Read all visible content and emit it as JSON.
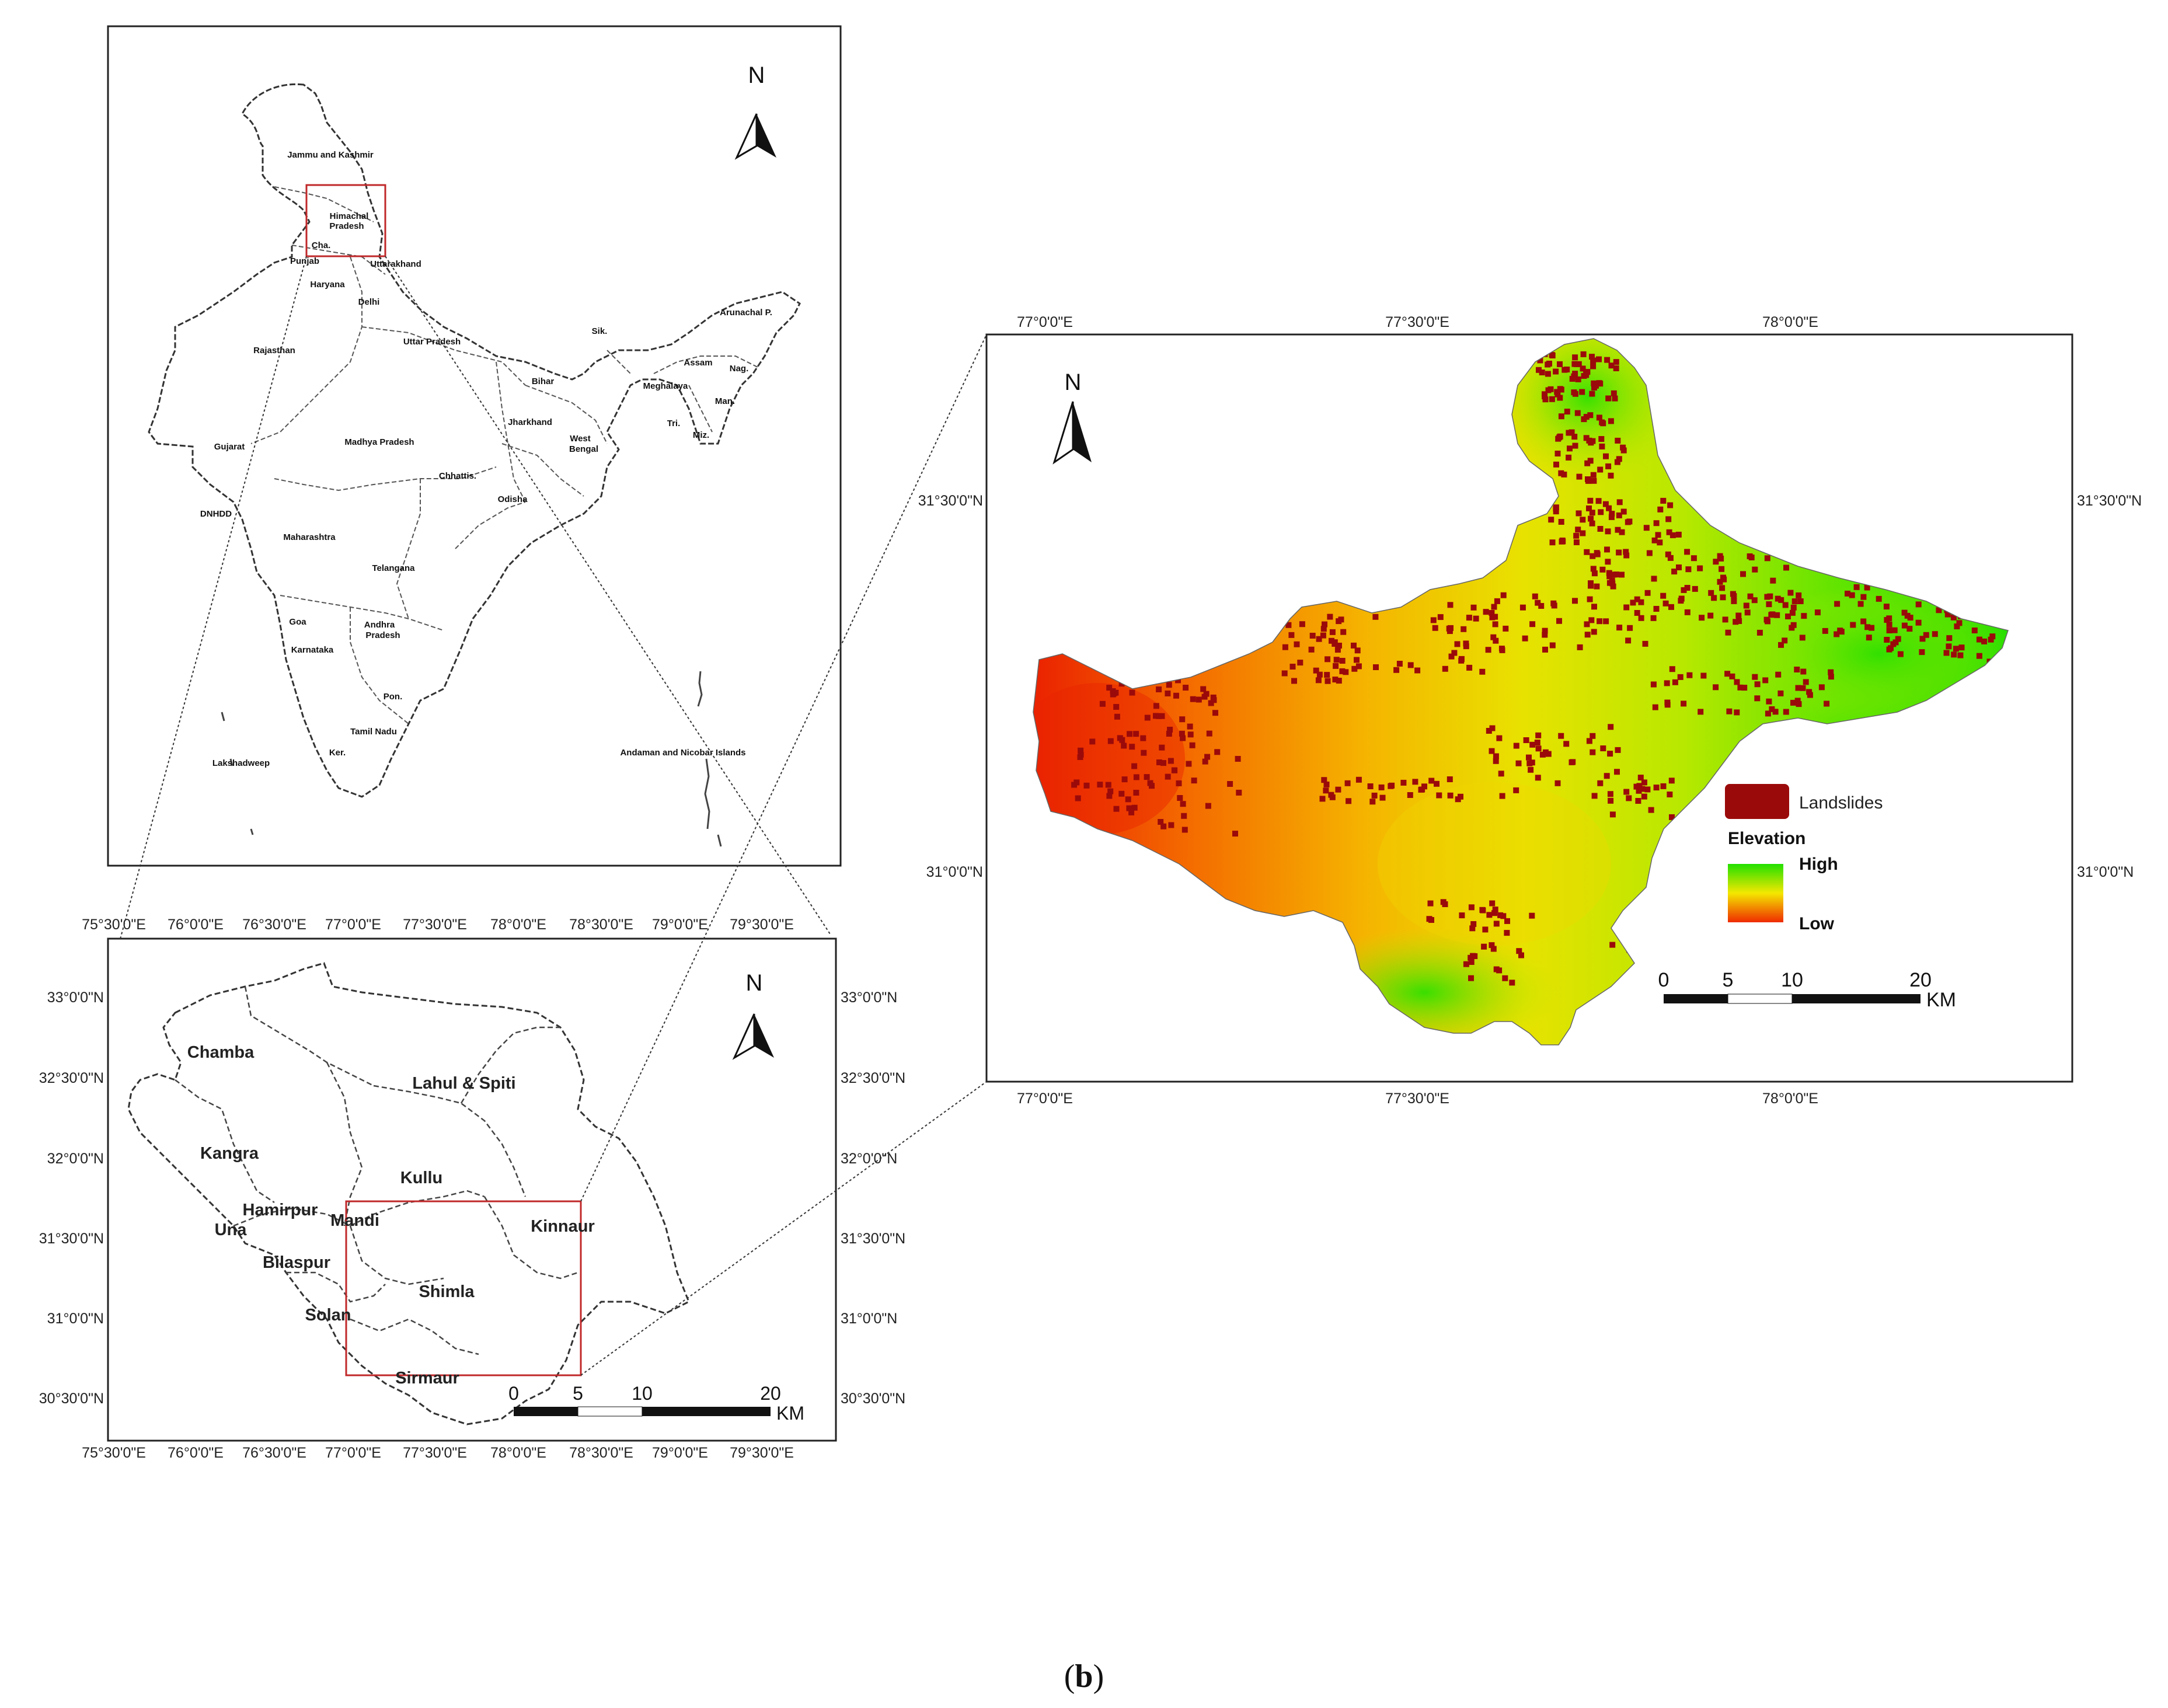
{
  "figure": {
    "caption_letter": "b"
  },
  "india_map": {
    "north": "N",
    "states": [
      "Jammu and Kashmir",
      "Himachal",
      "Pradesh",
      "Cha.",
      "Punjab",
      "Uttarakhand",
      "Haryana",
      "Delhi",
      "Uttar Pradesh",
      "Rajasthan",
      "Bihar",
      "Sik.",
      "Arunachal P.",
      "Assam",
      "Nag.",
      "Meghalaya",
      "Man.",
      "Tri.",
      "Miz.",
      "Jharkhand",
      "West",
      "Bengal",
      "Gujarat",
      "Madhya Pradesh",
      "Chhattis.",
      "Odisha",
      "DNHDD",
      "Maharashtra",
      "Telangana",
      "Goa",
      "Andhra",
      "Pradesh",
      "Karnataka",
      "Pon.",
      "Tamil Nadu",
      "Ker.",
      "Lakshadweep",
      "Andaman and Nicobar Islands"
    ]
  },
  "hp_map": {
    "north": "N",
    "districts": [
      "Chamba",
      "Lahul & Spiti",
      "Kangra",
      "Kullu",
      "Hamirpur",
      "Una",
      "Mandi",
      "Kinnaur",
      "Bilaspur",
      "Shimla",
      "Solan",
      "Sirmaur"
    ],
    "x_ticks": [
      "75°30'0\"E",
      "76°0'0\"E",
      "76°30'0\"E",
      "77°0'0\"E",
      "77°30'0\"E",
      "78°0'0\"E",
      "78°30'0\"E",
      "79°0'0\"E",
      "79°30'0\"E"
    ],
    "y_ticks": [
      "33°0'0\"N",
      "32°30'0\"N",
      "32°0'0\"N",
      "31°30'0\"N",
      "31°0'0\"N",
      "30°30'0\"N"
    ],
    "scale": {
      "labels": [
        "0",
        "5",
        "10",
        "20"
      ],
      "unit": "KM"
    }
  },
  "study_map": {
    "north": "N",
    "x_ticks": [
      "77°0'0\"E",
      "77°30'0\"E",
      "78°0'0\"E"
    ],
    "y_ticks": [
      "31°30'0\"N",
      "31°0'0\"N"
    ],
    "legend": {
      "landslides": "Landslides",
      "elevation_title": "Elevation",
      "high": "High",
      "low": "Low",
      "landslide_color": "#9b0a0a",
      "ramp_colors": [
        "#22e000",
        "#f4e800",
        "#ef2b00"
      ]
    },
    "scale": {
      "labels": [
        "0",
        "5",
        "10",
        "20"
      ],
      "unit": "KM"
    }
  }
}
